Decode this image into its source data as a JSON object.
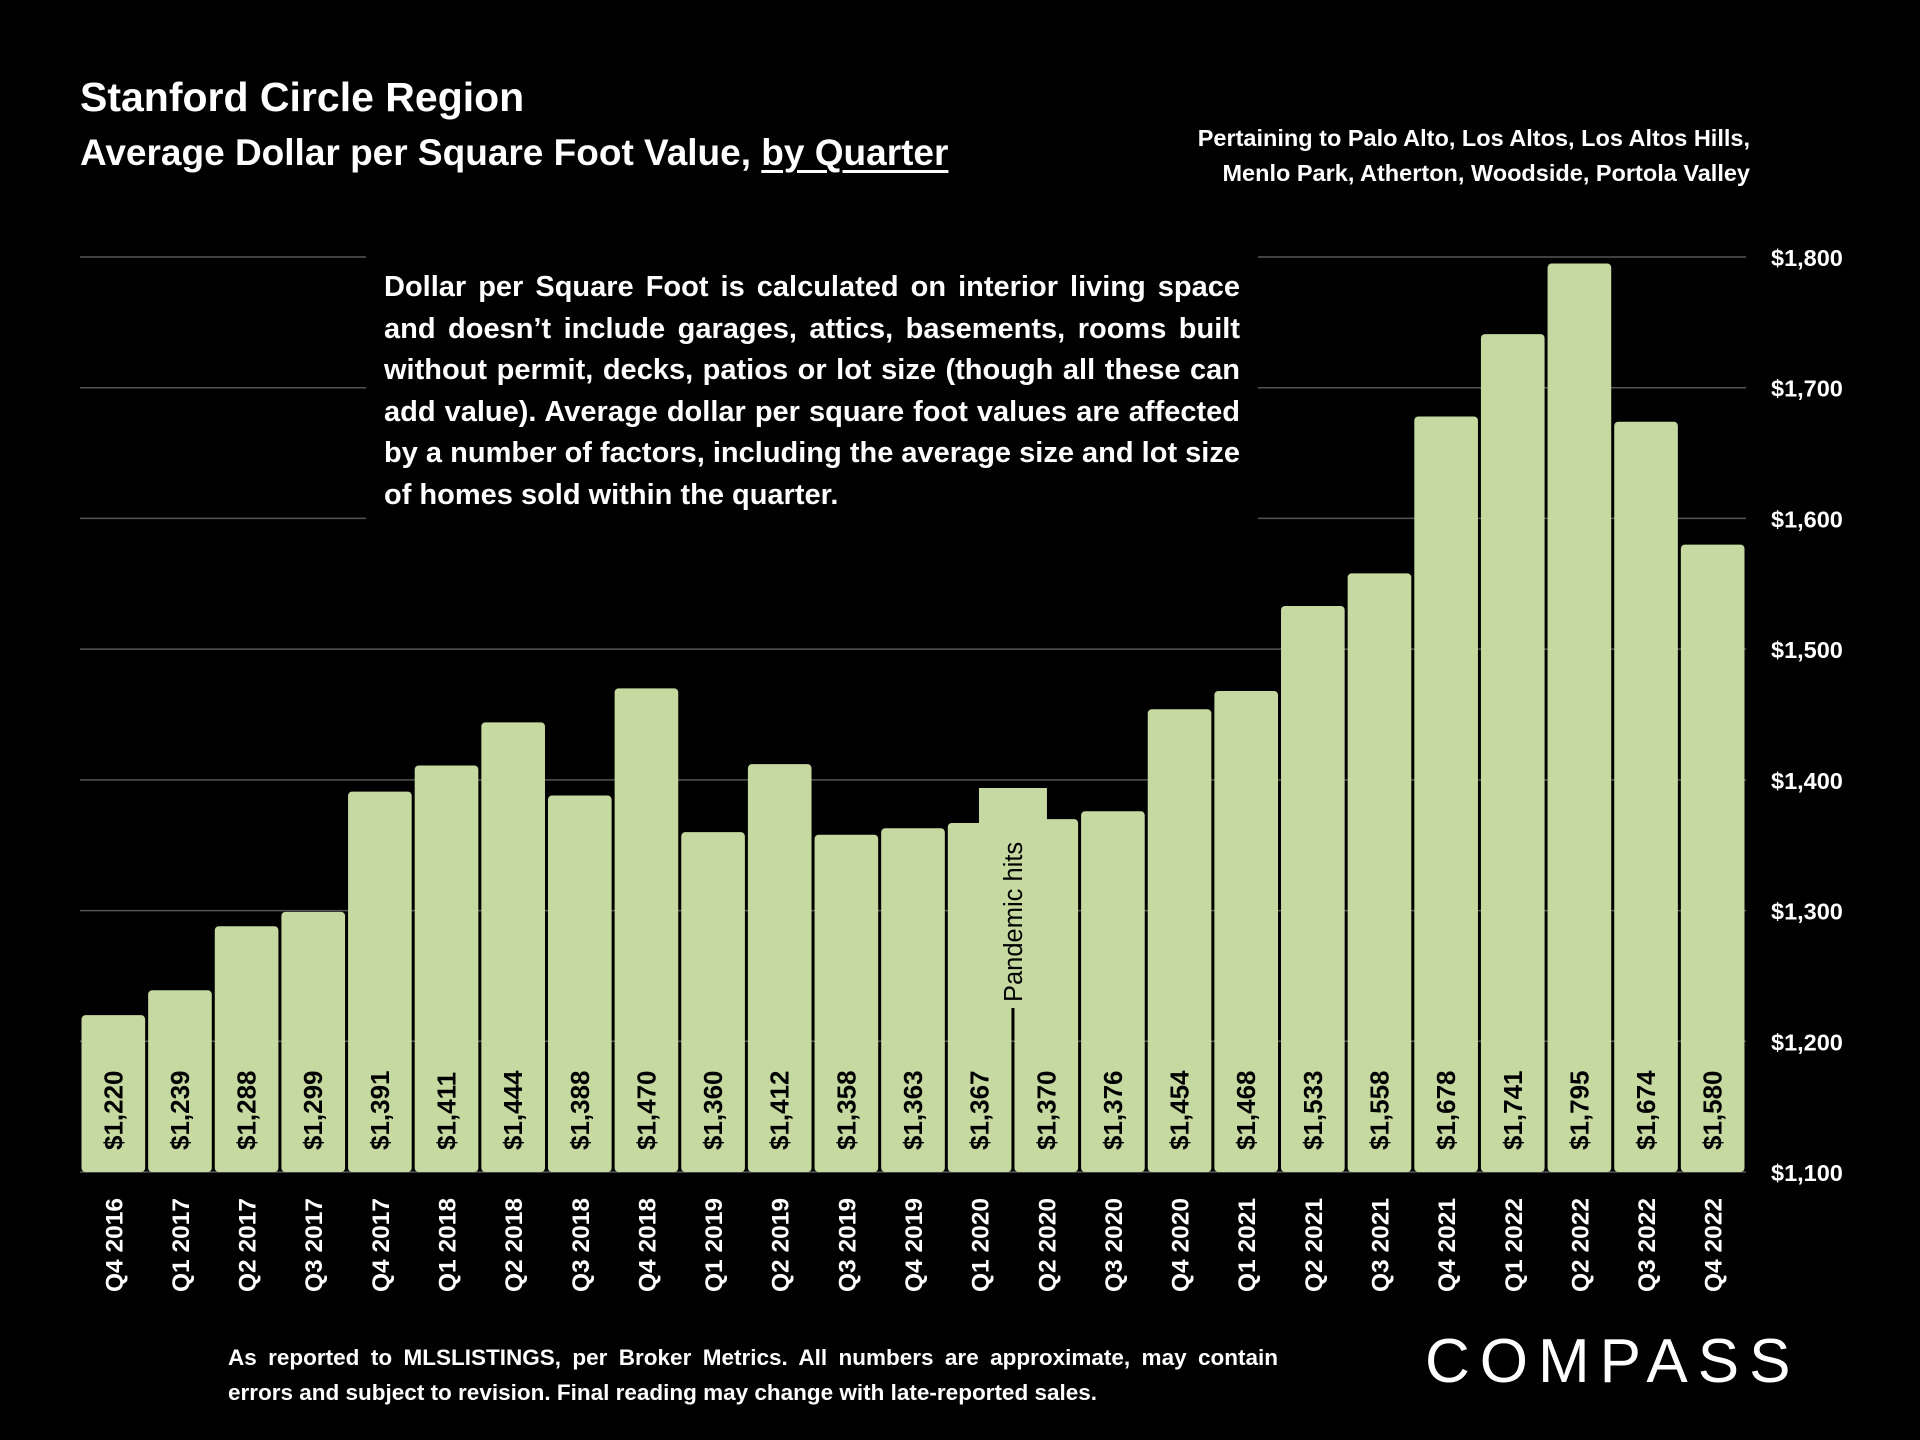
{
  "header": {
    "title": "Stanford Circle Region",
    "subtitle_main": "Average Dollar per Square Foot Value, ",
    "subtitle_link": "by Quarter",
    "pertaining_line1": "Pertaining to Palo Alto, Los Altos, Los Altos Hills,",
    "pertaining_line2": "Menlo Park, Atherton, Woodside, Portola Valley"
  },
  "note": "Dollar per Square Foot is calculated on interior living space and doesn’t include garages, attics, basements, rooms built without permit, decks, patios or lot size (though all these can add value). Average dollar per square foot values are affected by a number of factors, including the average size and lot size of homes sold within the quarter.",
  "footer": "As reported to MLSLISTINGS, per Broker Metrics. All numbers are approximate, may contain errors and subject to revision. Final reading may change with late-reported sales.",
  "brand": {
    "logo_text": "COMPASS"
  },
  "colors": {
    "bar": "#c6d9a0",
    "background": "#000000",
    "gridline": "#555555",
    "text": "#ffffff"
  },
  "chart_data": {
    "type": "bar",
    "title": "Stanford Circle Region",
    "subtitle": "Average Dollar per Square Foot Value, by Quarter",
    "xlabel": "",
    "ylabel": "",
    "ylim": [
      1100,
      1800
    ],
    "yticks": [
      1100,
      1200,
      1300,
      1400,
      1500,
      1600,
      1700,
      1800
    ],
    "ytick_labels": [
      "$1,100",
      "$1,200",
      "$1,300",
      "$1,400",
      "$1,500",
      "$1,600",
      "$1,700",
      "$1,800"
    ],
    "y_axis_side": "right",
    "grid": true,
    "categories": [
      "Q4 2016",
      "Q1 2017",
      "Q2 2017",
      "Q3 2017",
      "Q4 2017",
      "Q1 2018",
      "Q2 2018",
      "Q3 2018",
      "Q4 2018",
      "Q1 2019",
      "Q2 2019",
      "Q3 2019",
      "Q4 2019",
      "Q1 2020",
      "Q2 2020",
      "Q3 2020",
      "Q4 2020",
      "Q1 2021",
      "Q2 2021",
      "Q3 2021",
      "Q4 2021",
      "Q1 2022",
      "Q2 2022",
      "Q3 2022",
      "Q4 2022"
    ],
    "values": [
      1220,
      1239,
      1288,
      1299,
      1391,
      1411,
      1444,
      1388,
      1470,
      1360,
      1412,
      1358,
      1363,
      1367,
      1370,
      1376,
      1454,
      1468,
      1533,
      1558,
      1678,
      1741,
      1795,
      1674,
      1580
    ],
    "data_labels": [
      "$1,220",
      "$1,239",
      "$1,288",
      "$1,299",
      "$1,391",
      "$1,411",
      "$1,444",
      "$1,388",
      "$1,470",
      "$1,360",
      "$1,412",
      "$1,358",
      "$1,363",
      "$1,367",
      "$1,370",
      "$1,376",
      "$1,454",
      "$1,468",
      "$1,533",
      "$1,558",
      "$1,678",
      "$1,741",
      "$1,795",
      "$1,674",
      "$1,580"
    ],
    "annotations": [
      {
        "text": "Pandemic hits",
        "between": [
          "Q1 2020",
          "Q2 2020"
        ]
      }
    ]
  }
}
